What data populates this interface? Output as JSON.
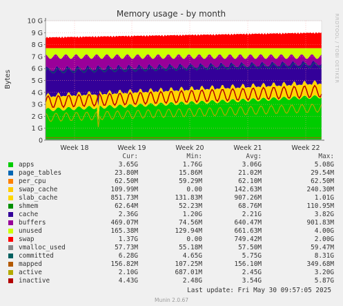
{
  "chart_data": {
    "type": "area",
    "title": "Memory usage - by month",
    "ylabel": "Bytes",
    "side_label": "RRDTOOL / TOBI OETIKER",
    "ylim": [
      0,
      10
    ],
    "y_ticks": [
      "0",
      "1 G",
      "2 G",
      "3 G",
      "4 G",
      "5 G",
      "6 G",
      "7 G",
      "8 G",
      "9 G",
      "10 G"
    ],
    "x_ticks": [
      "Week 18",
      "Week 19",
      "Week 20",
      "Week 21",
      "Week 22"
    ],
    "grid": true,
    "stack_order": [
      "apps",
      "page_tables",
      "per_cpu",
      "swap_cache",
      "slab_cache",
      "shmem",
      "cache",
      "buffers",
      "unused"
    ],
    "approx_stack_tops_gb": {
      "apps": 2.7,
      "slab_cache": 3.7,
      "cache": 6.0,
      "buffers": 7.0,
      "unused": 7.7,
      "swap": 8.8
    },
    "line_series_gb": {
      "inactive": 3.5,
      "active": 2.4,
      "committed": 5.8
    }
  },
  "legend": {
    "headers": {
      "cur": "Cur:",
      "min": "Min:",
      "avg": "Avg:",
      "max": "Max:"
    },
    "rows": [
      {
        "name": "apps",
        "color": "#00cc00",
        "cur": "3.65G",
        "min": "1.76G",
        "avg": "3.06G",
        "max": "5.08G"
      },
      {
        "name": "page_tables",
        "color": "#0066b3",
        "cur": "23.80M",
        "min": "15.86M",
        "avg": "21.02M",
        "max": "29.54M"
      },
      {
        "name": "per_cpu",
        "color": "#ff8000",
        "cur": "62.50M",
        "min": "59.29M",
        "avg": "62.10M",
        "max": "62.50M"
      },
      {
        "name": "swap_cache",
        "color": "#ffcc00",
        "cur": "109.99M",
        "min": "0.00",
        "avg": "142.63M",
        "max": "240.30M"
      },
      {
        "name": "slab_cache",
        "color": "#ffd700",
        "cur": "851.73M",
        "min": "131.83M",
        "avg": "907.26M",
        "max": "1.01G"
      },
      {
        "name": "shmem",
        "color": "#008f00",
        "cur": "62.64M",
        "min": "52.23M",
        "avg": "68.76M",
        "max": "110.95M"
      },
      {
        "name": "cache",
        "color": "#330099",
        "cur": "2.36G",
        "min": "1.20G",
        "avg": "2.21G",
        "max": "3.82G"
      },
      {
        "name": "buffers",
        "color": "#990099",
        "cur": "469.07M",
        "min": "74.56M",
        "avg": "640.47M",
        "max": "901.83M"
      },
      {
        "name": "unused",
        "color": "#ccff00",
        "cur": "165.38M",
        "min": "129.94M",
        "avg": "661.63M",
        "max": "4.00G"
      },
      {
        "name": "swap",
        "color": "#ff0000",
        "cur": "1.37G",
        "min": "0.00",
        "avg": "749.42M",
        "max": "2.00G"
      },
      {
        "name": "vmalloc_used",
        "color": "#888888",
        "cur": "57.73M",
        "min": "55.18M",
        "avg": "57.50M",
        "max": "59.47M"
      },
      {
        "name": "committed",
        "color": "#006060",
        "cur": "6.28G",
        "min": "4.65G",
        "avg": "5.75G",
        "max": "8.31G"
      },
      {
        "name": "mapped",
        "color": "#b35a00",
        "cur": "156.82M",
        "min": "107.25M",
        "avg": "156.10M",
        "max": "349.68M"
      },
      {
        "name": "active",
        "color": "#b3aa00",
        "cur": "2.10G",
        "min": "687.01M",
        "avg": "2.45G",
        "max": "3.20G"
      },
      {
        "name": "inactive",
        "color": "#b30000",
        "cur": "4.43G",
        "min": "2.48G",
        "avg": "3.54G",
        "max": "5.87G"
      }
    ]
  },
  "footer": {
    "last_update": "Last update: Fri May 30 09:57:05 2025",
    "munin_version": "Munin 2.0.67"
  }
}
